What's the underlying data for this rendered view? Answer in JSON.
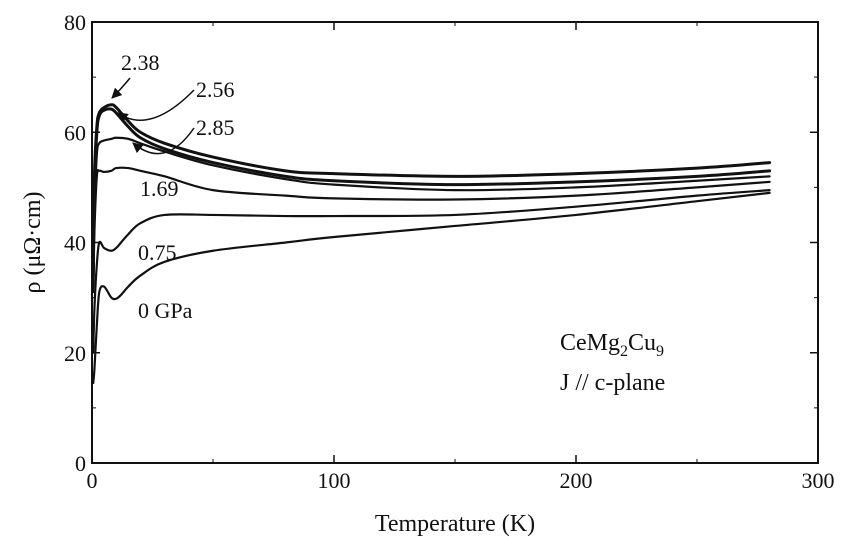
{
  "chart_data": {
    "type": "line",
    "title": "",
    "xlabel": "Temperature (K)",
    "ylabel": "ρ (μΩ·cm)",
    "xlim": [
      0,
      300
    ],
    "ylim": [
      0,
      80
    ],
    "xticks": [
      0,
      100,
      200,
      300
    ],
    "yticks": [
      0,
      20,
      40,
      60,
      80
    ],
    "grid": false,
    "annotations": {
      "sample_formula": {
        "base": "CeMg",
        "sub1": "2",
        "mid": "Cu",
        "sub2": "9"
      },
      "current_direction": "J // c-plane"
    },
    "series": [
      {
        "name": "0 GPa",
        "x": [
          0.5,
          1,
          2,
          3,
          5,
          8,
          10,
          12,
          15,
          20,
          30,
          50,
          80,
          100,
          150,
          200,
          250,
          280
        ],
        "y": [
          14.5,
          17,
          25,
          31,
          32,
          30,
          29.8,
          30.5,
          32,
          34,
          36.5,
          38.5,
          40,
          41,
          43,
          45,
          47.5,
          49
        ]
      },
      {
        "name": "0.75",
        "x": [
          0.5,
          1,
          2,
          3,
          5,
          8,
          10,
          12,
          15,
          20,
          30,
          50,
          80,
          100,
          150,
          200,
          250,
          280
        ],
        "y": [
          20,
          28,
          36,
          40,
          39,
          38.5,
          39,
          40,
          41.5,
          43.5,
          45,
          45,
          44.8,
          44.8,
          45,
          46.5,
          48.5,
          49.5
        ]
      },
      {
        "name": "1.69",
        "x": [
          0.5,
          1,
          2,
          3,
          5,
          8,
          10,
          15,
          20,
          30,
          50,
          80,
          100,
          150,
          200,
          250,
          280
        ],
        "y": [
          31,
          42,
          52,
          53,
          52.8,
          53,
          53.5,
          53.5,
          53,
          52,
          49.5,
          48.5,
          48,
          47.8,
          48.5,
          50,
          51
        ]
      },
      {
        "name": "2.85",
        "x": [
          0.5,
          1,
          2,
          3,
          5,
          8,
          10,
          15,
          20,
          30,
          50,
          80,
          100,
          150,
          200,
          250,
          280
        ],
        "y": [
          33,
          45,
          56,
          58,
          58.5,
          58.8,
          59,
          58.8,
          58,
          56.5,
          54,
          51.5,
          50.5,
          49.5,
          50,
          51.2,
          52
        ]
      },
      {
        "name": "2.56",
        "x": [
          0.5,
          1,
          2,
          3,
          5,
          8,
          10,
          15,
          20,
          30,
          50,
          80,
          100,
          150,
          200,
          250,
          280
        ],
        "y": [
          33,
          50,
          60,
          63,
          64,
          64.2,
          63.5,
          61,
          59,
          57,
          54.5,
          52,
          51.2,
          50.5,
          51,
          52,
          53
        ]
      },
      {
        "name": "2.38",
        "x": [
          0.5,
          1,
          2,
          3,
          5,
          8,
          10,
          15,
          20,
          30,
          50,
          80,
          100,
          150,
          200,
          250,
          280
        ],
        "y": [
          34,
          52,
          61,
          63.5,
          64.5,
          65,
          64.5,
          62,
          60,
          58,
          55.5,
          53,
          52.5,
          52,
          52.5,
          53.5,
          54.5
        ]
      }
    ],
    "labels": [
      "2.38",
      "2.56",
      "2.85",
      "1.69",
      "0.75",
      "0 GPa"
    ]
  }
}
